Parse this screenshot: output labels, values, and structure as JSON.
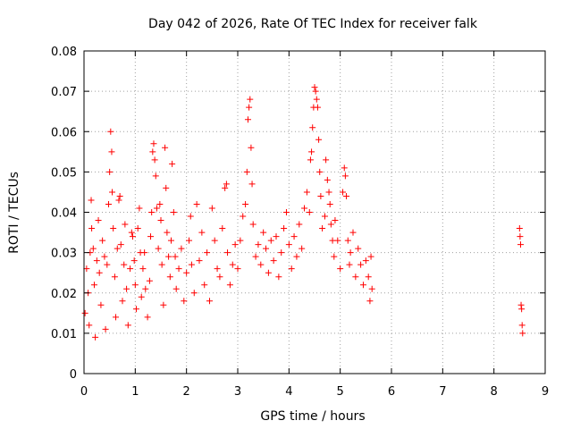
{
  "chart_data": {
    "type": "scatter",
    "title": "Day 042 of 2026, Rate Of TEC Index for receiver falk",
    "xlabel": "GPS time / hours",
    "ylabel": "ROTI / TECUs",
    "xlim": [
      0,
      9
    ],
    "ylim": [
      0,
      0.08
    ],
    "xticks": [
      "0",
      "1",
      "2",
      "3",
      "4",
      "5",
      "6",
      "7",
      "8",
      "9"
    ],
    "yticks": [
      "0",
      "0.01",
      "0.02",
      "0.03",
      "0.04",
      "0.05",
      "0.06",
      "0.07",
      "0.08"
    ],
    "grid": true,
    "marker": "+",
    "color": "#ff0000",
    "series": [
      {
        "name": "ROTI",
        "points": [
          [
            0.02,
            0.015
          ],
          [
            0.05,
            0.026
          ],
          [
            0.08,
            0.02
          ],
          [
            0.1,
            0.012
          ],
          [
            0.12,
            0.03
          ],
          [
            0.14,
            0.043
          ],
          [
            0.15,
            0.036
          ],
          [
            0.18,
            0.031
          ],
          [
            0.2,
            0.022
          ],
          [
            0.22,
            0.009
          ],
          [
            0.25,
            0.028
          ],
          [
            0.28,
            0.038
          ],
          [
            0.3,
            0.025
          ],
          [
            0.33,
            0.017
          ],
          [
            0.36,
            0.033
          ],
          [
            0.4,
            0.029
          ],
          [
            0.42,
            0.011
          ],
          [
            0.45,
            0.027
          ],
          [
            0.48,
            0.042
          ],
          [
            0.5,
            0.05
          ],
          [
            0.52,
            0.06
          ],
          [
            0.54,
            0.055
          ],
          [
            0.55,
            0.045
          ],
          [
            0.57,
            0.036
          ],
          [
            0.6,
            0.024
          ],
          [
            0.62,
            0.014
          ],
          [
            0.65,
            0.031
          ],
          [
            0.68,
            0.043
          ],
          [
            0.7,
            0.044
          ],
          [
            0.72,
            0.032
          ],
          [
            0.75,
            0.018
          ],
          [
            0.78,
            0.027
          ],
          [
            0.8,
            0.037
          ],
          [
            0.83,
            0.021
          ],
          [
            0.86,
            0.012
          ],
          [
            0.9,
            0.026
          ],
          [
            0.93,
            0.035
          ],
          [
            0.95,
            0.034
          ],
          [
            0.98,
            0.028
          ],
          [
            1.0,
            0.022
          ],
          [
            1.02,
            0.016
          ],
          [
            1.05,
            0.036
          ],
          [
            1.08,
            0.041
          ],
          [
            1.1,
            0.03
          ],
          [
            1.12,
            0.019
          ],
          [
            1.15,
            0.026
          ],
          [
            1.18,
            0.03
          ],
          [
            1.2,
            0.021
          ],
          [
            1.24,
            0.014
          ],
          [
            1.28,
            0.023
          ],
          [
            1.3,
            0.034
          ],
          [
            1.32,
            0.04
          ],
          [
            1.34,
            0.055
          ],
          [
            1.36,
            0.057
          ],
          [
            1.38,
            0.053
          ],
          [
            1.4,
            0.049
          ],
          [
            1.42,
            0.041
          ],
          [
            1.45,
            0.031
          ],
          [
            1.48,
            0.042
          ],
          [
            1.5,
            0.038
          ],
          [
            1.52,
            0.027
          ],
          [
            1.55,
            0.017
          ],
          [
            1.58,
            0.056
          ],
          [
            1.6,
            0.046
          ],
          [
            1.62,
            0.035
          ],
          [
            1.65,
            0.029
          ],
          [
            1.68,
            0.024
          ],
          [
            1.7,
            0.033
          ],
          [
            1.72,
            0.052
          ],
          [
            1.75,
            0.04
          ],
          [
            1.78,
            0.029
          ],
          [
            1.8,
            0.021
          ],
          [
            1.85,
            0.026
          ],
          [
            1.9,
            0.031
          ],
          [
            1.95,
            0.018
          ],
          [
            2.0,
            0.025
          ],
          [
            2.05,
            0.033
          ],
          [
            2.08,
            0.039
          ],
          [
            2.1,
            0.027
          ],
          [
            2.15,
            0.02
          ],
          [
            2.2,
            0.042
          ],
          [
            2.25,
            0.028
          ],
          [
            2.3,
            0.035
          ],
          [
            2.35,
            0.022
          ],
          [
            2.4,
            0.03
          ],
          [
            2.45,
            0.018
          ],
          [
            2.5,
            0.041
          ],
          [
            2.55,
            0.033
          ],
          [
            2.6,
            0.026
          ],
          [
            2.65,
            0.024
          ],
          [
            2.7,
            0.036
          ],
          [
            2.75,
            0.046
          ],
          [
            2.78,
            0.047
          ],
          [
            2.8,
            0.03
          ],
          [
            2.85,
            0.022
          ],
          [
            2.9,
            0.027
          ],
          [
            2.95,
            0.032
          ],
          [
            3.0,
            0.026
          ],
          [
            3.05,
            0.033
          ],
          [
            3.1,
            0.039
          ],
          [
            3.15,
            0.042
          ],
          [
            3.18,
            0.05
          ],
          [
            3.2,
            0.063
          ],
          [
            3.22,
            0.066
          ],
          [
            3.24,
            0.068
          ],
          [
            3.26,
            0.056
          ],
          [
            3.28,
            0.047
          ],
          [
            3.3,
            0.037
          ],
          [
            3.35,
            0.029
          ],
          [
            3.4,
            0.032
          ],
          [
            3.45,
            0.027
          ],
          [
            3.5,
            0.035
          ],
          [
            3.55,
            0.031
          ],
          [
            3.6,
            0.025
          ],
          [
            3.65,
            0.033
          ],
          [
            3.7,
            0.028
          ],
          [
            3.75,
            0.034
          ],
          [
            3.8,
            0.024
          ],
          [
            3.85,
            0.03
          ],
          [
            3.9,
            0.036
          ],
          [
            3.95,
            0.04
          ],
          [
            4.0,
            0.032
          ],
          [
            4.05,
            0.026
          ],
          [
            4.1,
            0.034
          ],
          [
            4.15,
            0.029
          ],
          [
            4.2,
            0.037
          ],
          [
            4.25,
            0.031
          ],
          [
            4.3,
            0.041
          ],
          [
            4.35,
            0.045
          ],
          [
            4.4,
            0.04
          ],
          [
            4.42,
            0.053
          ],
          [
            4.44,
            0.055
          ],
          [
            4.46,
            0.061
          ],
          [
            4.48,
            0.066
          ],
          [
            4.5,
            0.071
          ],
          [
            4.52,
            0.07
          ],
          [
            4.54,
            0.068
          ],
          [
            4.56,
            0.066
          ],
          [
            4.58,
            0.058
          ],
          [
            4.6,
            0.05
          ],
          [
            4.62,
            0.044
          ],
          [
            4.65,
            0.036
          ],
          [
            4.7,
            0.039
          ],
          [
            4.72,
            0.053
          ],
          [
            4.75,
            0.048
          ],
          [
            4.78,
            0.045
          ],
          [
            4.8,
            0.042
          ],
          [
            4.82,
            0.037
          ],
          [
            4.85,
            0.033
          ],
          [
            4.88,
            0.029
          ],
          [
            4.9,
            0.038
          ],
          [
            4.95,
            0.033
          ],
          [
            5.0,
            0.026
          ],
          [
            5.05,
            0.045
          ],
          [
            5.08,
            0.051
          ],
          [
            5.1,
            0.049
          ],
          [
            5.12,
            0.044
          ],
          [
            5.15,
            0.033
          ],
          [
            5.18,
            0.027
          ],
          [
            5.2,
            0.03
          ],
          [
            5.25,
            0.035
          ],
          [
            5.3,
            0.024
          ],
          [
            5.35,
            0.031
          ],
          [
            5.4,
            0.027
          ],
          [
            5.45,
            0.022
          ],
          [
            5.5,
            0.028
          ],
          [
            5.55,
            0.024
          ],
          [
            5.58,
            0.018
          ],
          [
            5.6,
            0.029
          ],
          [
            5.62,
            0.021
          ],
          [
            8.5,
            0.036
          ],
          [
            8.51,
            0.034
          ],
          [
            8.52,
            0.032
          ],
          [
            8.53,
            0.017
          ],
          [
            8.54,
            0.016
          ],
          [
            8.55,
            0.012
          ],
          [
            8.56,
            0.01
          ]
        ]
      }
    ]
  }
}
